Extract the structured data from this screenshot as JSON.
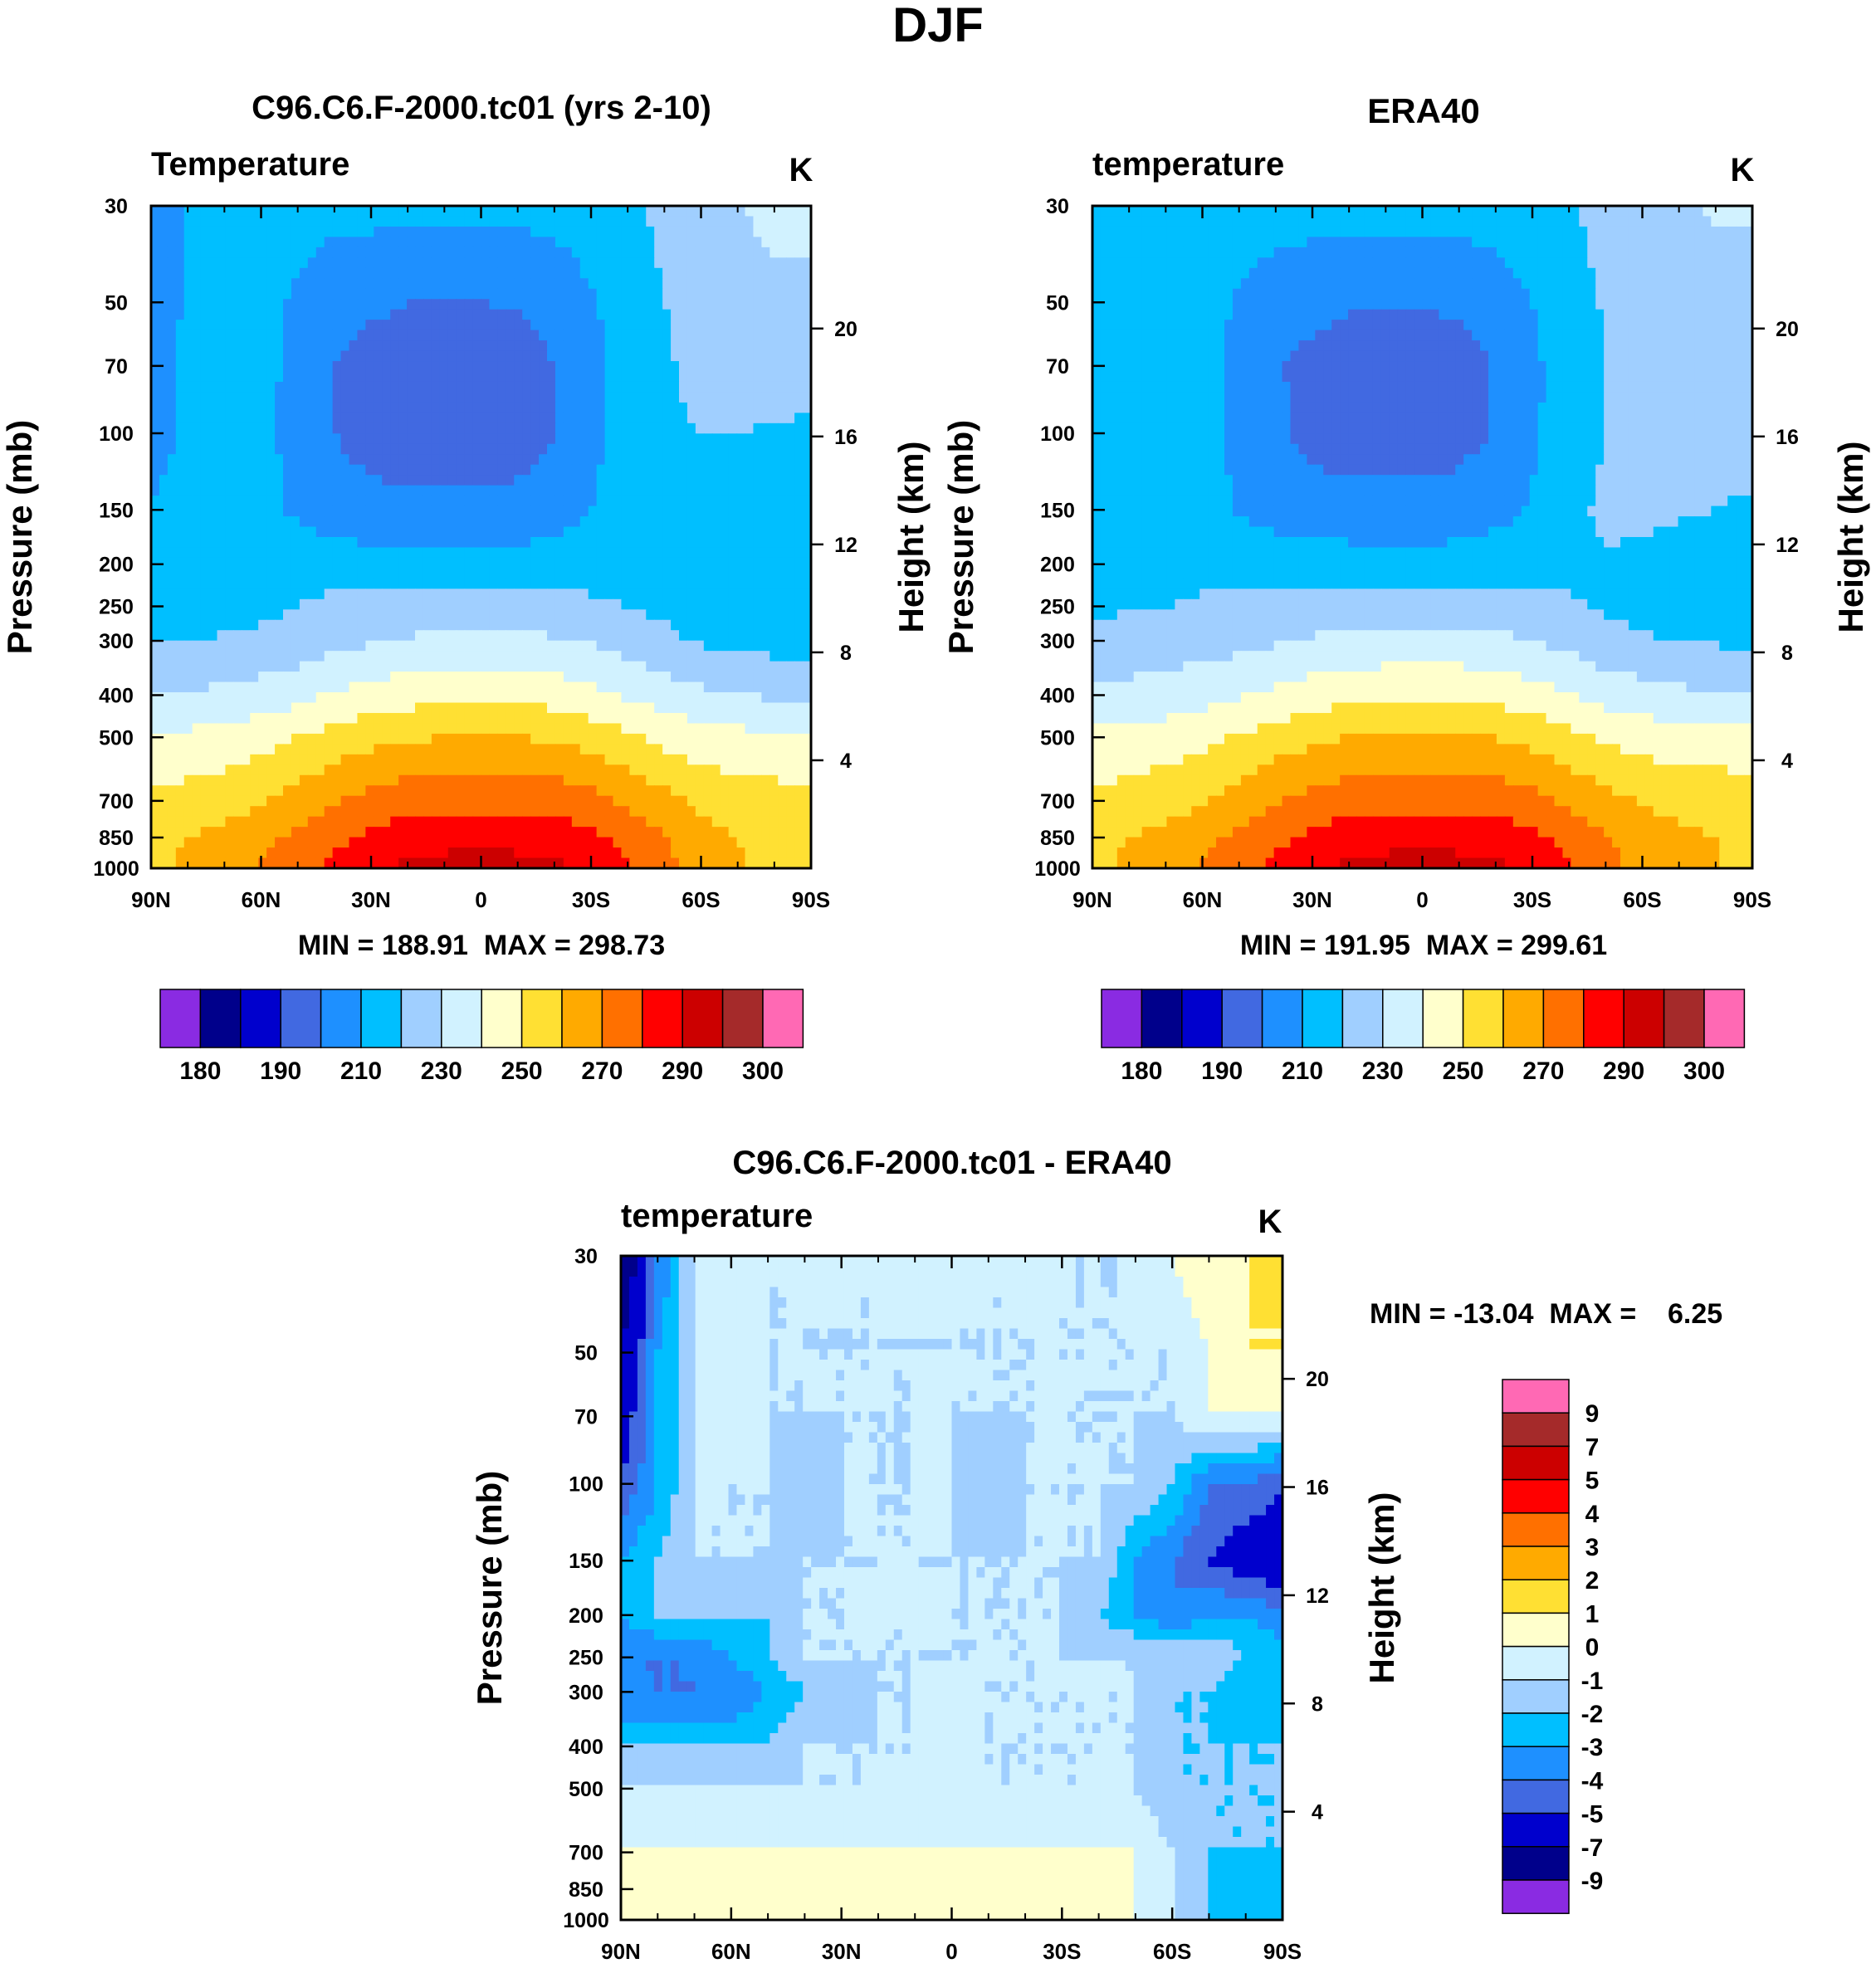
{
  "main_title": "DJF",
  "chart_data": [
    {
      "type": "heatmap",
      "panel": "model",
      "title": "C96.C6.F-2000.tc01 (yrs 2-10)",
      "left_label": "Temperature",
      "units": "K",
      "ylabel": "Pressure (mb)",
      "ylabel_right": "Height (km)",
      "x_ticks": [
        "90N",
        "60N",
        "30N",
        "0",
        "30S",
        "60S",
        "90S"
      ],
      "y_ticks": [
        30,
        50,
        70,
        100,
        150,
        200,
        250,
        300,
        400,
        500,
        700,
        850,
        1000
      ],
      "height_ticks": [
        20,
        16,
        12,
        8,
        4
      ],
      "min": 188.91,
      "max": 298.73,
      "stats_text": "MIN = 188.91  MAX = 298.73",
      "x_range": [
        "90N",
        "90S"
      ],
      "y_range": [
        30,
        1000
      ]
    },
    {
      "type": "heatmap",
      "panel": "observation",
      "title": "ERA40",
      "left_label": "temperature",
      "units": "K",
      "ylabel": "Pressure (mb)",
      "ylabel_right": "Height (km)",
      "x_ticks": [
        "90N",
        "60N",
        "30N",
        "0",
        "30S",
        "60S",
        "90S"
      ],
      "y_ticks": [
        30,
        50,
        70,
        100,
        150,
        200,
        250,
        300,
        400,
        500,
        700,
        850,
        1000
      ],
      "height_ticks": [
        20,
        16,
        12,
        8,
        4
      ],
      "min": 191.95,
      "max": 299.61,
      "stats_text": "MIN = 191.95  MAX = 299.61",
      "x_range": [
        "90N",
        "90S"
      ],
      "y_range": [
        30,
        1000
      ]
    },
    {
      "type": "heatmap",
      "panel": "difference",
      "title": "C96.C6.F-2000.tc01 - ERA40",
      "left_label": "temperature",
      "units": "K",
      "ylabel": "Pressure (mb)",
      "ylabel_right": "Height (km)",
      "x_ticks": [
        "90N",
        "60N",
        "30N",
        "0",
        "30S",
        "60S",
        "90S"
      ],
      "y_ticks": [
        30,
        50,
        70,
        100,
        150,
        200,
        250,
        300,
        400,
        500,
        700,
        850,
        1000
      ],
      "height_ticks": [
        20,
        16,
        12,
        8,
        4
      ],
      "min": -13.04,
      "max": 6.25,
      "stats_text": "MIN = -13.04  MAX =    6.25",
      "x_range": [
        "90N",
        "90S"
      ],
      "y_range": [
        30,
        1000
      ]
    }
  ],
  "temp_colorbar": {
    "colors": [
      "#8a2be2",
      "#00008b",
      "#0000cd",
      "#4169e1",
      "#1e90ff",
      "#00bfff",
      "#a0cfff",
      "#d1f2ff",
      "#ffffcc",
      "#ffe033",
      "#ffaa00",
      "#ff7000",
      "#ff0000",
      "#cc0000",
      "#a52a2a",
      "#ff69b4"
    ],
    "labels": [
      "180",
      "190",
      "210",
      "230",
      "250",
      "270",
      "290",
      "300"
    ]
  },
  "diff_colorbar": {
    "colors": [
      "#ff69b4",
      "#a52a2a",
      "#cc0000",
      "#ff0000",
      "#ff7000",
      "#ffaa00",
      "#ffe033",
      "#ffffcc",
      "#d1f2ff",
      "#a0cfff",
      "#00bfff",
      "#1e90ff",
      "#4169e1",
      "#0000cd",
      "#00008b",
      "#8a2be2"
    ],
    "labels": [
      "9",
      "7",
      "5",
      "4",
      "3",
      "2",
      "1",
      "0",
      "-1",
      "-2",
      "-3",
      "-4",
      "-5",
      "-7",
      "-9"
    ]
  },
  "temp_fields": {
    "lat": [
      90,
      80,
      70,
      60,
      50,
      40,
      30,
      20,
      10,
      0,
      -10,
      -20,
      -30,
      -40,
      -50,
      -60,
      -70,
      -80,
      -90
    ],
    "p": [
      30,
      50,
      70,
      100,
      150,
      200,
      250,
      300,
      400,
      500,
      700,
      850,
      1000
    ],
    "model": [
      [
        204,
        210,
        214,
        216,
        214,
        213,
        213,
        213,
        213,
        213,
        213,
        213,
        215,
        218,
        222,
        226,
        230,
        232,
        232
      ],
      [
        206,
        211,
        214,
        214,
        208,
        204,
        202,
        200,
        200,
        200,
        201,
        204,
        209,
        215,
        220,
        223,
        226,
        228,
        228
      ],
      [
        207,
        211,
        214,
        214,
        206,
        200,
        196,
        194,
        193,
        193,
        194,
        200,
        207,
        214,
        219,
        222,
        224,
        225,
        225
      ],
      [
        208,
        211,
        214,
        213,
        206,
        200,
        196,
        194,
        193,
        193,
        194,
        200,
        207,
        215,
        219,
        220,
        220,
        219,
        218
      ],
      [
        210,
        212,
        214,
        214,
        208,
        204,
        203,
        203,
        203,
        203,
        204,
        206,
        210,
        216,
        219,
        218,
        216,
        214,
        213
      ],
      [
        212,
        214,
        215,
        216,
        216,
        216,
        214,
        213,
        212,
        212,
        213,
        214,
        215,
        216,
        216,
        214,
        213,
        212,
        211
      ],
      [
        214,
        215,
        216,
        218,
        220,
        222,
        223,
        224,
        225,
        225,
        225,
        224,
        222,
        220,
        218,
        216,
        215,
        214,
        213
      ],
      [
        220,
        220,
        221,
        222,
        224,
        227,
        229,
        231,
        232,
        232,
        232,
        231,
        229,
        226,
        222,
        219,
        218,
        216,
        215
      ],
      [
        230,
        231,
        232,
        234,
        237,
        241,
        244,
        246,
        247,
        247,
        247,
        246,
        243,
        239,
        235,
        232,
        230,
        229,
        228
      ],
      [
        241,
        242,
        244,
        246,
        250,
        254,
        257,
        259,
        260,
        260,
        260,
        259,
        256,
        252,
        247,
        244,
        243,
        242,
        242
      ],
      [
        252,
        254,
        256,
        259,
        264,
        269,
        273,
        276,
        277,
        277,
        277,
        276,
        273,
        268,
        263,
        258,
        255,
        254,
        253
      ],
      [
        257,
        260,
        263,
        267,
        272,
        278,
        282,
        285,
        286,
        287,
        286,
        285,
        282,
        277,
        270,
        264,
        260,
        257,
        256
      ],
      [
        258,
        262,
        266,
        271,
        277,
        283,
        288,
        292,
        294,
        295,
        294,
        292,
        288,
        282,
        274,
        266,
        261,
        258,
        256
      ]
    ],
    "obs": [
      [
        213,
        214,
        215,
        216,
        215,
        214,
        214,
        214,
        214,
        214,
        214,
        214,
        216,
        219,
        223,
        226,
        229,
        231,
        231
      ],
      [
        213,
        214,
        215,
        214,
        209,
        205,
        203,
        201,
        201,
        201,
        202,
        205,
        210,
        216,
        221,
        224,
        226,
        227,
        227
      ],
      [
        213,
        214,
        215,
        214,
        207,
        201,
        197,
        195,
        194,
        194,
        195,
        201,
        208,
        215,
        220,
        223,
        224,
        225,
        225
      ],
      [
        213,
        214,
        215,
        214,
        207,
        202,
        197,
        195,
        194,
        194,
        196,
        201,
        208,
        216,
        220,
        222,
        224,
        223,
        223
      ],
      [
        213,
        214,
        215,
        215,
        209,
        205,
        204,
        204,
        204,
        204,
        205,
        207,
        211,
        217,
        222,
        222,
        221,
        220,
        219
      ],
      [
        215,
        216,
        217,
        218,
        218,
        217,
        215,
        214,
        213,
        213,
        214,
        215,
        216,
        218,
        219,
        218,
        216,
        215,
        215
      ],
      [
        218,
        219,
        220,
        221,
        222,
        223,
        224,
        225,
        226,
        226,
        226,
        225,
        223,
        221,
        219,
        217,
        216,
        216,
        215
      ],
      [
        224,
        224,
        225,
        226,
        227,
        229,
        231,
        232,
        233,
        233,
        233,
        232,
        230,
        227,
        223,
        221,
        220,
        219,
        218
      ],
      [
        232,
        233,
        234,
        236,
        239,
        242,
        245,
        247,
        248,
        248,
        248,
        247,
        244,
        240,
        236,
        234,
        232,
        231,
        230
      ],
      [
        242,
        243,
        245,
        247,
        251,
        255,
        258,
        260,
        261,
        261,
        261,
        260,
        257,
        253,
        248,
        246,
        245,
        244,
        244
      ],
      [
        252,
        254,
        256,
        259,
        264,
        269,
        273,
        276,
        277,
        277,
        277,
        276,
        273,
        268,
        263,
        259,
        257,
        256,
        255
      ],
      [
        257,
        260,
        263,
        267,
        272,
        278,
        282,
        285,
        286,
        287,
        286,
        285,
        282,
        277,
        270,
        265,
        262,
        260,
        258
      ],
      [
        258,
        262,
        266,
        271,
        277,
        283,
        288,
        292,
        294,
        295,
        294,
        292,
        288,
        282,
        274,
        267,
        263,
        260,
        258
      ]
    ]
  }
}
